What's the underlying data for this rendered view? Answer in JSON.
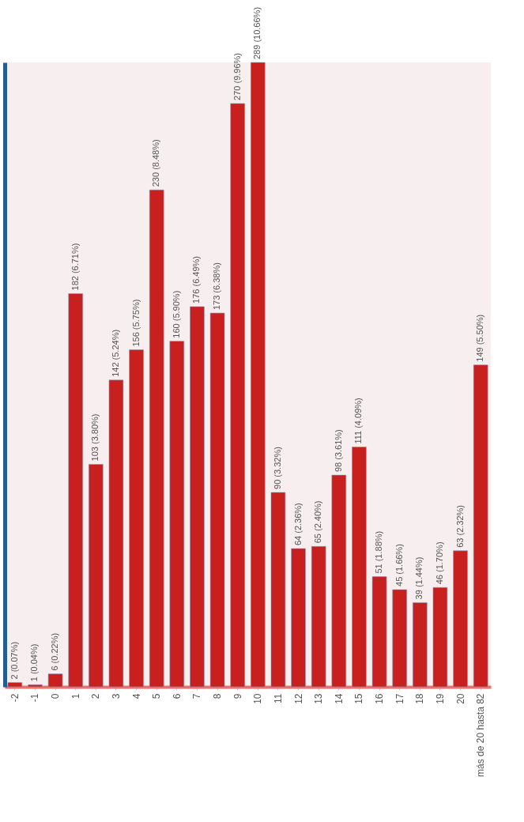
{
  "chart_data": {
    "type": "bar",
    "categories": [
      "-2",
      "-1",
      "0",
      "1",
      "2",
      "3",
      "4",
      "5",
      "6",
      "7",
      "8",
      "9",
      "10",
      "11",
      "12",
      "13",
      "14",
      "15",
      "16",
      "17",
      "18",
      "19",
      "20",
      "más de 20 hasta 82"
    ],
    "values": [
      2,
      1,
      6,
      182,
      103,
      142,
      156,
      230,
      160,
      176,
      173,
      270,
      289,
      90,
      64,
      65,
      98,
      111,
      51,
      45,
      39,
      46,
      63,
      149
    ],
    "value_labels": [
      "2 (0.07%)",
      "1 (0.04%)",
      "6 (0.22%)",
      "182 (6.71%)",
      "103 (3.80%)",
      "142 (5.24%)",
      "156 (5.75%)",
      "230 (8.48%)",
      "160 (5.90%)",
      "176 (6.49%)",
      "173 (6.38%)",
      "270 (9.96%)",
      "289 (10.66%)",
      "90 (3.32%)",
      "64 (2.36%)",
      "65 (2.40%)",
      "98 (3.61%)",
      "111 (4.09%)",
      "51 (1.88%)",
      "45 (1.66%)",
      "39 (1.44%)",
      "46 (1.70%)",
      "63 (2.32%)",
      "149 (5.50%)"
    ],
    "color": "#c81f1f",
    "tick_labels": "x"
  }
}
